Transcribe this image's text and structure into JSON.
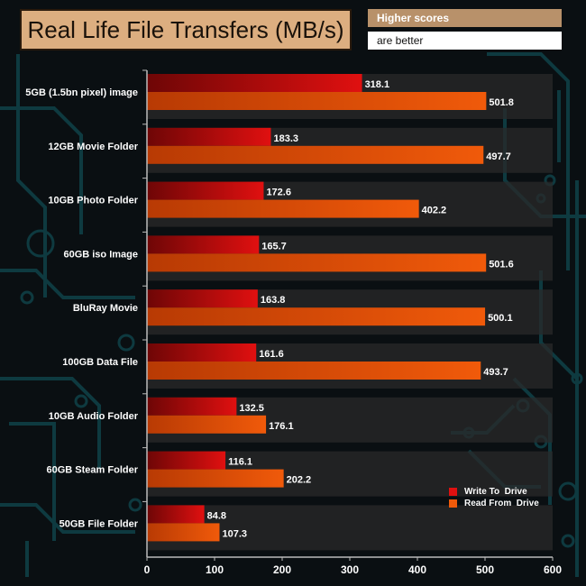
{
  "header": {
    "title": "Real Life File Transfers (MB/s)",
    "note_line1": "Higher scores",
    "note_line2": "are better"
  },
  "colors": {
    "write": "#e01010",
    "write_dark": "#6e0606",
    "read": "#f05a0a",
    "read_dark": "#b83a04",
    "background": "#0a0f12",
    "circuit": "#0e3a40",
    "track": "#2a2a2a"
  },
  "chart_data": {
    "type": "bar",
    "orientation": "horizontal",
    "title": "Real Life File Transfers (MB/s)",
    "categories": [
      "5GB (1.5bn pixel) image",
      "12GB Movie Folder",
      "10GB Photo Folder",
      "60GB iso Image",
      "BluRay Movie",
      "100GB Data File",
      "10GB Audio Folder",
      "60GB Steam Folder",
      "50GB File Folder"
    ],
    "series": [
      {
        "name": "Write To  Drive",
        "values": [
          318.1,
          183.3,
          172.6,
          165.7,
          163.8,
          161.6,
          132.5,
          116.1,
          84.8
        ]
      },
      {
        "name": "Read From  Drive",
        "values": [
          501.8,
          497.7,
          402.2,
          501.6,
          500.1,
          493.7,
          176.1,
          202.2,
          107.3
        ]
      }
    ],
    "value_labels": {
      "write": [
        "318.1",
        "183.3",
        "172.6",
        "165.7",
        "163.8",
        "161.6",
        "132.5",
        "116.1",
        "84.8"
      ],
      "read": [
        "501.8",
        "497.7",
        "402.2",
        "501.6",
        "500.1",
        "493.7",
        "176.1",
        "202.2",
        "107.3"
      ]
    },
    "xlim": [
      0,
      600
    ],
    "xticks": [
      0,
      100,
      200,
      300,
      400,
      500,
      600
    ],
    "xtick_labels": [
      "0",
      "100",
      "200",
      "300",
      "400",
      "500",
      "600"
    ],
    "legend_position": "bottom-right",
    "grid": false
  }
}
